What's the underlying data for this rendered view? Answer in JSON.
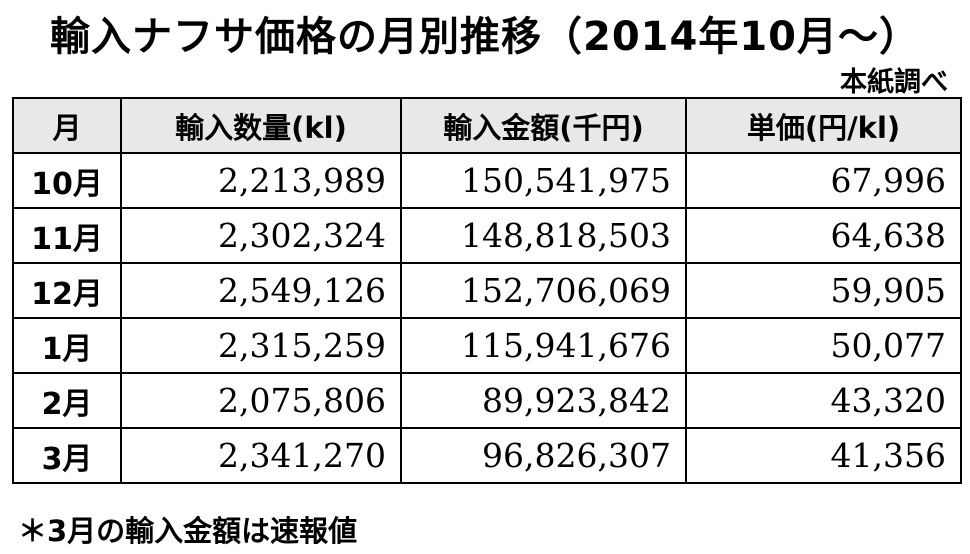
{
  "title": "輸入ナフサ価格の月別推移（2014年10月～）",
  "source": "本紙調べ",
  "table": {
    "headers": [
      "月",
      "輸入数量(kl)",
      "輸入金額(千円)",
      "単価(円/kl)"
    ],
    "rows": [
      {
        "month": "10月",
        "quantity": "2,213,989",
        "amount": "150,541,975",
        "unit_price": "67,996"
      },
      {
        "month": "11月",
        "quantity": "2,302,324",
        "amount": "148,818,503",
        "unit_price": "64,638"
      },
      {
        "month": "12月",
        "quantity": "2,549,126",
        "amount": "152,706,069",
        "unit_price": "59,905"
      },
      {
        "month": "1月",
        "quantity": "2,315,259",
        "amount": "115,941,676",
        "unit_price": "50,077"
      },
      {
        "month": "2月",
        "quantity": "2,075,806",
        "amount": "89,923,842",
        "unit_price": "43,320"
      },
      {
        "month": "3月",
        "quantity": "2,341,270",
        "amount": "96,826,307",
        "unit_price": "41,356"
      }
    ]
  },
  "note": "＊3月の輸入金額は速報値"
}
